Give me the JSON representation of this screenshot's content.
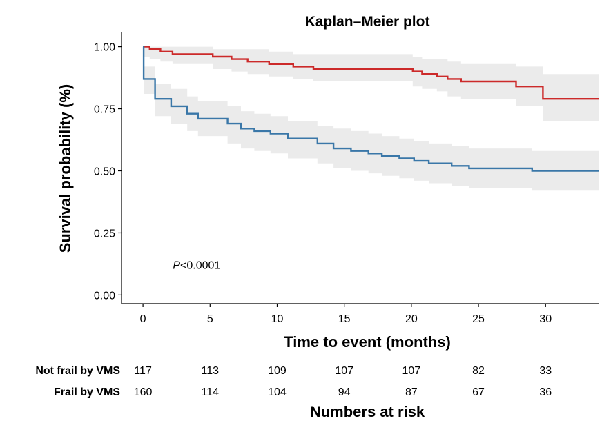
{
  "chart_data": {
    "type": "line",
    "title": "Kaplan–Meier plot",
    "xlabel": "Time to event (months)",
    "ylabel": "Survival probability (%)",
    "xlim": [
      -1.6,
      34
    ],
    "ylim": [
      -0.035,
      1.06
    ],
    "x_ticks": [
      0,
      5,
      10,
      15,
      20,
      25,
      30
    ],
    "y_ticks": [
      0.0,
      0.25,
      0.5,
      0.75,
      1.0
    ],
    "y_tick_labels": [
      "0.00",
      "0.25",
      "0.50",
      "0.75",
      "1.00"
    ],
    "grid": false,
    "annotation": {
      "italic": "P",
      "text": "<0.0001",
      "x": 4,
      "y": 0.105
    },
    "series": [
      {
        "color": "#cc2a2a",
        "band_color": "#ebebeb",
        "x": [
          0,
          0.5,
          1.3,
          2.2,
          5.2,
          6.6,
          7.8,
          9.4,
          11.2,
          12.7,
          20.1,
          20.8,
          21.9,
          22.7,
          23.7,
          27.8,
          29.8,
          34
        ],
        "y": [
          1.0,
          0.99,
          0.98,
          0.97,
          0.96,
          0.95,
          0.94,
          0.93,
          0.92,
          0.91,
          0.9,
          0.89,
          0.88,
          0.87,
          0.86,
          0.84,
          0.79,
          0.79
        ],
        "lower": [
          0.96,
          0.95,
          0.94,
          0.93,
          0.91,
          0.9,
          0.89,
          0.88,
          0.87,
          0.86,
          0.84,
          0.83,
          0.82,
          0.8,
          0.79,
          0.76,
          0.7,
          0.7
        ],
        "upper": [
          1.0,
          1.0,
          1.0,
          1.0,
          0.99,
          0.99,
          0.99,
          0.98,
          0.97,
          0.97,
          0.96,
          0.95,
          0.95,
          0.94,
          0.93,
          0.92,
          0.89,
          0.89
        ]
      },
      {
        "color": "#3a77a8",
        "band_color": "#ebebeb",
        "x": [
          0,
          0.05,
          0.9,
          2.1,
          3.3,
          4.1,
          6.3,
          7.3,
          8.3,
          9.5,
          10.8,
          13.0,
          14.2,
          15.5,
          16.8,
          17.8,
          19.1,
          20.2,
          21.3,
          23.0,
          24.3,
          29.0,
          34
        ],
        "y": [
          1.0,
          0.87,
          0.79,
          0.76,
          0.73,
          0.71,
          0.69,
          0.67,
          0.66,
          0.65,
          0.63,
          0.61,
          0.59,
          0.58,
          0.57,
          0.56,
          0.55,
          0.54,
          0.53,
          0.52,
          0.51,
          0.5,
          0.5
        ],
        "lower": [
          0.95,
          0.81,
          0.72,
          0.69,
          0.66,
          0.64,
          0.61,
          0.59,
          0.58,
          0.57,
          0.55,
          0.53,
          0.51,
          0.5,
          0.49,
          0.48,
          0.47,
          0.46,
          0.45,
          0.44,
          0.43,
          0.42,
          0.42
        ],
        "upper": [
          1.0,
          0.92,
          0.85,
          0.83,
          0.8,
          0.78,
          0.76,
          0.74,
          0.73,
          0.72,
          0.7,
          0.68,
          0.67,
          0.66,
          0.65,
          0.64,
          0.63,
          0.62,
          0.61,
          0.6,
          0.59,
          0.58,
          0.58
        ]
      }
    ]
  },
  "risk_table": {
    "title": "Numbers at risk",
    "times": [
      0,
      5,
      10,
      15,
      20,
      25,
      30
    ],
    "rows": [
      {
        "label": "Not frail by VMS",
        "values": [
          117,
          113,
          109,
          107,
          107,
          82,
          33
        ]
      },
      {
        "label": "Frail by VMS",
        "values": [
          160,
          114,
          104,
          94,
          87,
          67,
          36
        ]
      }
    ]
  }
}
